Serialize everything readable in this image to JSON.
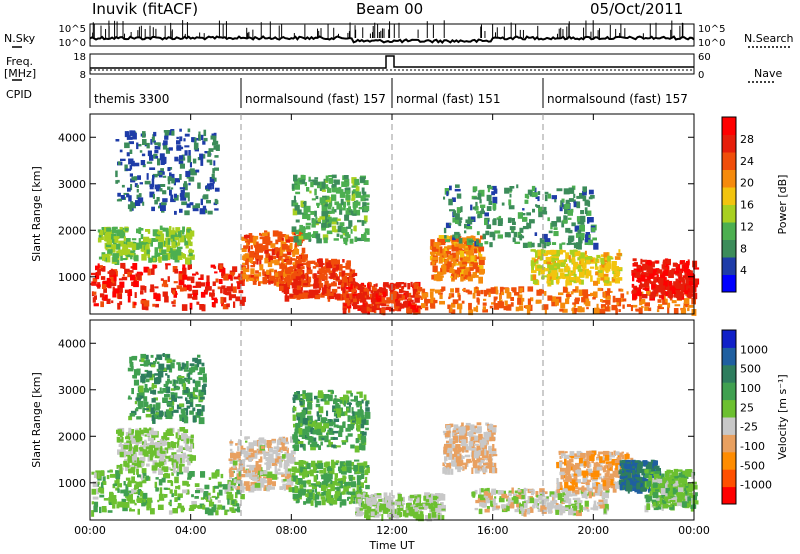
{
  "header": {
    "station": "Inuvik (fitACF)",
    "beam": "Beam 00",
    "date": "05/Oct/2011"
  },
  "side_labels": {
    "nsky": "N.Sky",
    "freq": "Freq.",
    "freq_unit": "[MHz]",
    "cpid": "CPID",
    "nsearch": "N.Search",
    "nave": "Nave"
  },
  "noise_axis": {
    "left_top": "10^5",
    "left_bottom": "10^0",
    "right_top": "10^5",
    "right_bottom": "10^0"
  },
  "freq_axis": {
    "left_top": "18",
    "left_bottom": "8",
    "right_top": "60",
    "right_bottom": "0"
  },
  "cpid_segments": [
    {
      "label": "themis 3300",
      "start_h": 0
    },
    {
      "label": "normalsound (fast) 157",
      "start_h": 6
    },
    {
      "label": "normal (fast) 151",
      "start_h": 12
    },
    {
      "label": "normalsound (fast) 157",
      "start_h": 18
    }
  ],
  "colors": {
    "power": [
      "#0000ff",
      "#1e3ca8",
      "#3c8c5a",
      "#4caf50",
      "#a8d020",
      "#f2c40e",
      "#f58a0c",
      "#f04e0a",
      "#e61e0a",
      "#ff0000"
    ],
    "velocity": [
      "#ff0000",
      "#ff5000",
      "#ff8c00",
      "#e8a060",
      "#c8c8c8",
      "#6cc030",
      "#40a050",
      "#2e7d5e",
      "#1f5fa0",
      "#1020c8"
    ]
  },
  "chart_data": [
    {
      "type": "heatmap",
      "name_note": "",
      "x": {
        "min_h": 0,
        "max_h": 24,
        "tick_labels": [
          "00:00",
          "04:00",
          "08:00",
          "12:00",
          "16:00",
          "20:00",
          "00:00"
        ],
        "label": "Time UT"
      },
      "y": {
        "min": 200,
        "max": 4500,
        "ticks": [
          1000,
          2000,
          3000,
          4000
        ],
        "label": "Slant Range [km]"
      },
      "colorbar": {
        "label": "Power [dB]",
        "ticks": [
          "4",
          "8",
          "12",
          "16",
          "20",
          "24",
          "28"
        ],
        "range": [
          0,
          30
        ]
      },
      "blobs": [
        {
          "t0": 0.0,
          "t1": 6.2,
          "r0": 400,
          "r1": 1300,
          "v": 26
        },
        {
          "t0": 0.3,
          "t1": 4.0,
          "r0": 1400,
          "r1": 2100,
          "v": 12
        },
        {
          "t0": 6.0,
          "t1": 8.5,
          "r0": 900,
          "r1": 2000,
          "v": 22
        },
        {
          "t0": 7.5,
          "t1": 10.5,
          "r0": 600,
          "r1": 1400,
          "v": 24
        },
        {
          "t0": 10.0,
          "t1": 13.0,
          "r0": 300,
          "r1": 900,
          "v": 25
        },
        {
          "t0": 13.5,
          "t1": 15.5,
          "r0": 1000,
          "r1": 1900,
          "v": 20
        },
        {
          "t0": 13.0,
          "t1": 24.0,
          "r0": 300,
          "r1": 800,
          "v": 21
        },
        {
          "t0": 17.5,
          "t1": 21.0,
          "r0": 900,
          "r1": 1600,
          "v": 16
        },
        {
          "t0": 21.5,
          "t1": 24.0,
          "r0": 600,
          "r1": 1400,
          "v": 27
        },
        {
          "t0": 8.0,
          "t1": 11.0,
          "r0": 1800,
          "r1": 3200,
          "v": 10
        },
        {
          "t0": 14.0,
          "t1": 20.0,
          "r0": 1700,
          "r1": 3000,
          "v": 8
        },
        {
          "t0": 1.0,
          "t1": 5.0,
          "r0": 2400,
          "r1": 4200,
          "v": 6
        }
      ]
    },
    {
      "type": "heatmap",
      "x": {
        "min_h": 0,
        "max_h": 24,
        "tick_labels": [
          "00:00",
          "04:00",
          "08:00",
          "12:00",
          "16:00",
          "20:00",
          "00:00"
        ],
        "label": "Time UT"
      },
      "y": {
        "min": 200,
        "max": 4500,
        "ticks": [
          1000,
          2000,
          3000,
          4000
        ],
        "label": "Slant Range [km]"
      },
      "colorbar": {
        "label": "Velocity [m s⁻¹]",
        "ticks": [
          "1000",
          "500",
          "100",
          "25",
          "-25",
          "-100",
          "-500",
          "-1000"
        ],
        "range": [
          -1000,
          1000
        ]
      },
      "blobs": [
        {
          "t0": 0.0,
          "t1": 6.0,
          "r0": 400,
          "r1": 1300,
          "v": 150
        },
        {
          "t0": 1.0,
          "t1": 4.0,
          "r0": 1300,
          "r1": 2200,
          "v": 10
        },
        {
          "t0": 5.5,
          "t1": 8.0,
          "r0": 900,
          "r1": 2000,
          "v": -150
        },
        {
          "t0": 8.0,
          "t1": 11.0,
          "r0": 600,
          "r1": 1500,
          "v": 200
        },
        {
          "t0": 10.5,
          "t1": 14.0,
          "r0": 300,
          "r1": 800,
          "v": 5
        },
        {
          "t0": 14.0,
          "t1": 16.0,
          "r0": 1300,
          "r1": 2300,
          "v": -200
        },
        {
          "t0": 15.0,
          "t1": 20.5,
          "r0": 400,
          "r1": 900,
          "v": -80
        },
        {
          "t0": 18.5,
          "t1": 21.5,
          "r0": 900,
          "r1": 1700,
          "v": -300
        },
        {
          "t0": 21.0,
          "t1": 22.5,
          "r0": 900,
          "r1": 1500,
          "v": 600
        },
        {
          "t0": 22.0,
          "t1": 24.0,
          "r0": 500,
          "r1": 1300,
          "v": 120
        },
        {
          "t0": 8.0,
          "t1": 11.0,
          "r0": 1800,
          "r1": 3000,
          "v": 300
        },
        {
          "t0": 1.5,
          "t1": 4.5,
          "r0": 2400,
          "r1": 3800,
          "v": 350
        }
      ]
    }
  ]
}
